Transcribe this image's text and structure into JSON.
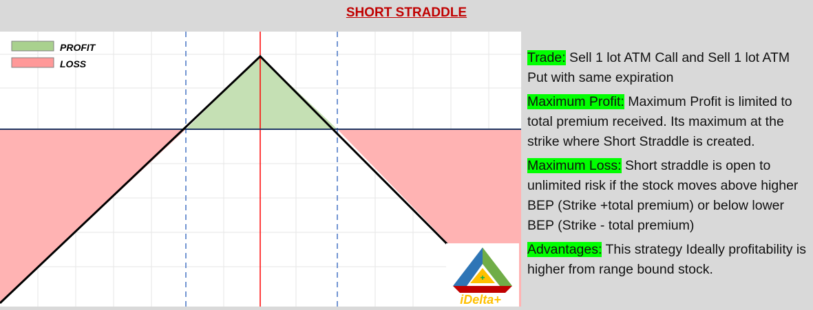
{
  "title": "SHORT STRADDLE",
  "legend": [
    {
      "label": "PROFIT",
      "color": "#a9d18e"
    },
    {
      "label": "LOSS",
      "color": "#ff9999"
    }
  ],
  "colors": {
    "profit_fill": "#c5e0b4",
    "loss_fill": "#ffb3b3",
    "payoff_line": "#000000",
    "zero_line": "#1f3864",
    "strike_line": "#ff0000",
    "bep_line": "#4472c4",
    "highlight": "#00ff00"
  },
  "info": [
    {
      "label": "Trade:",
      "text": " Sell 1 lot ATM Call and Sell 1 lot ATM Put with same expiration"
    },
    {
      "label": "Maximum Profit:",
      "text": " Maximum Profit is limited to total premium received. Its maximum at the strike where Short Straddle is created."
    },
    {
      "label": "Maximum Loss:",
      "text": " Short straddle is open to unlimited risk if the stock moves above higher BEP (Strike +total premium) or below lower BEP (Strike - total premium)"
    },
    {
      "label": "Advantages:",
      "text": " This strategy Ideally profitability is higher from range bound stock."
    }
  ],
  "logo": {
    "text": "iDelta+",
    "icon": "idelta-triangle-logo"
  }
}
